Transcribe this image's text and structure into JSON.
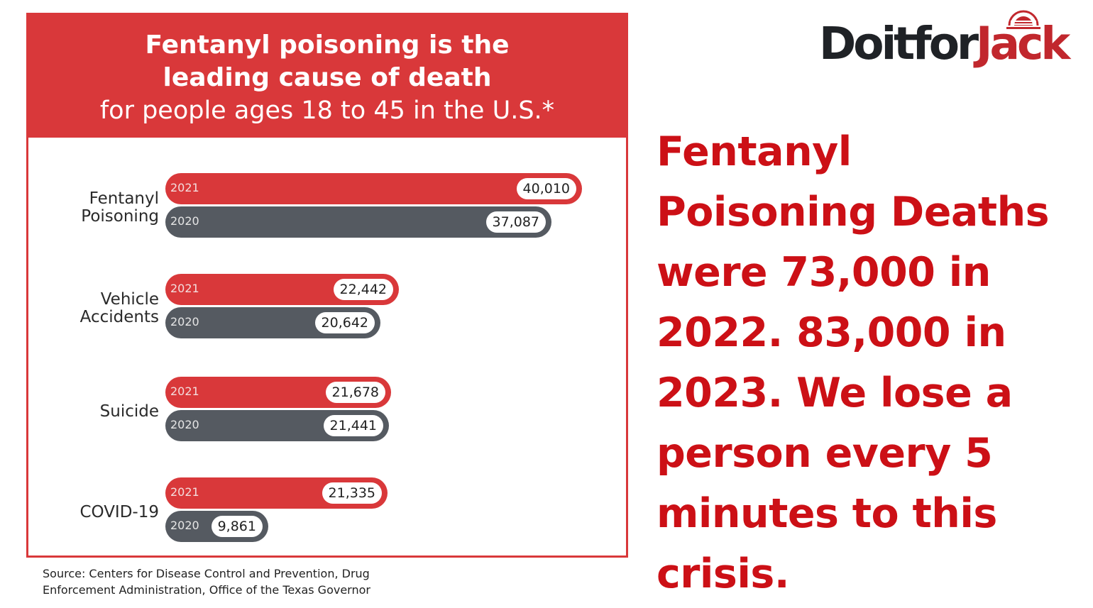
{
  "chart_data": {
    "type": "bar",
    "title": "Fentanyl poisoning is the leading cause of death",
    "subtitle": "for people ages 18 to 45 in the U.S.*",
    "categories": [
      "Fentanyl Poisoning",
      "Vehicle Accidents",
      "Suicide",
      "COVID-19"
    ],
    "series": [
      {
        "name": "2021",
        "values": [
          40010,
          22442,
          21678,
          21335
        ],
        "labels": [
          "40,010",
          "22,442",
          "21,678",
          "21,335"
        ],
        "color": "#d9383a"
      },
      {
        "name": "2020",
        "values": [
          37087,
          20642,
          21441,
          9861
        ],
        "labels": [
          "37,087",
          "20,642",
          "21,441",
          "9,861"
        ],
        "color": "#555a61"
      }
    ],
    "orientation": "horizontal",
    "xlim": [
      0,
      40010
    ]
  },
  "header": {
    "line1": "Fentanyl poisoning is the",
    "line2": "leading cause of death",
    "line3": "for people ages 18 to 45 in the U.S.*"
  },
  "categories_display": [
    [
      "Fentanyl",
      "Poisoning"
    ],
    [
      "Vehicle",
      "Accidents"
    ],
    [
      "Suicide"
    ],
    [
      "COVID-19"
    ]
  ],
  "source": {
    "line1": "Source: Centers for Disease Control and Prevention, Drug",
    "line2": "Enforcement Administration, Office of the Texas Governor"
  },
  "logo": {
    "part1": "Doitfor",
    "part2": "Jack"
  },
  "headline": "Fentanyl Poisoning Deaths were 73,000 in 2022. 83,000 in 2023. We lose a person every 5 minutes to this crisis."
}
